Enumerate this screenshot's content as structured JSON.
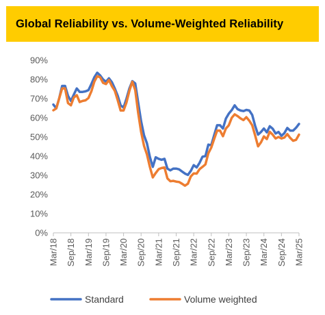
{
  "title": "Global Reliability vs. Volume-Weighted Reliability",
  "colors": {
    "title_bg": "#ffcc00",
    "standard": "#4472c4",
    "volume_weighted": "#ed7d31",
    "axis_text": "#595959"
  },
  "chart_data": {
    "type": "line",
    "title": "Global Reliability vs. Volume-Weighted Reliability",
    "ylim": [
      0,
      90
    ],
    "y_ticks": [
      0,
      10,
      20,
      30,
      40,
      50,
      60,
      70,
      80,
      90
    ],
    "y_tick_labels": [
      "0%",
      "10%",
      "20%",
      "30%",
      "40%",
      "50%",
      "60%",
      "70%",
      "80%",
      "90%"
    ],
    "x_tick_labels": [
      "Mar/18",
      "Sep/18",
      "Mar/19",
      "Sep/19",
      "Mar/20",
      "Sep/20",
      "Mar/21",
      "Sep/21",
      "Mar/22",
      "Sep/22",
      "Mar/23",
      "Sep/23",
      "Mar/24",
      "Sep/24",
      "Mar/25"
    ],
    "x": [
      "Mar/18",
      "Apr/18",
      "May/18",
      "Jun/18",
      "Jul/18",
      "Aug/18",
      "Sep/18",
      "Oct/18",
      "Nov/18",
      "Dec/18",
      "Jan/19",
      "Feb/19",
      "Mar/19",
      "Apr/19",
      "May/19",
      "Jun/19",
      "Jul/19",
      "Aug/19",
      "Sep/19",
      "Oct/19",
      "Nov/19",
      "Dec/19",
      "Jan/20",
      "Feb/20",
      "Mar/20",
      "Apr/20",
      "May/20",
      "Jun/20",
      "Jul/20",
      "Aug/20",
      "Sep/20",
      "Oct/20",
      "Nov/20",
      "Dec/20",
      "Jan/21",
      "Feb/21",
      "Mar/21",
      "Apr/21",
      "May/21",
      "Jun/21",
      "Jul/21",
      "Aug/21",
      "Sep/21",
      "Oct/21",
      "Nov/21",
      "Dec/21",
      "Jan/22",
      "Feb/22",
      "Mar/22",
      "Apr/22",
      "May/22",
      "Jun/22",
      "Jul/22",
      "Aug/22",
      "Sep/22",
      "Oct/22",
      "Nov/22",
      "Dec/22",
      "Jan/23",
      "Feb/23",
      "Mar/23",
      "Apr/23",
      "May/23",
      "Jun/23",
      "Jul/23",
      "Aug/23",
      "Sep/23",
      "Oct/23",
      "Nov/23",
      "Dec/23",
      "Jan/24",
      "Feb/24",
      "Mar/24",
      "Apr/24",
      "May/24",
      "Jun/24",
      "Jul/24",
      "Aug/24",
      "Sep/24",
      "Oct/24",
      "Nov/24",
      "Dec/24",
      "Jan/25",
      "Feb/25",
      "Mar/25"
    ],
    "series": [
      {
        "name": "Standard",
        "values": [
          66.9,
          64.9,
          70.2,
          76.6,
          76.6,
          71.5,
          68.8,
          72.1,
          75.3,
          73.5,
          73.5,
          73.8,
          74.4,
          77.6,
          81.1,
          83.5,
          82.1,
          80.0,
          78.8,
          80.6,
          78.6,
          75.3,
          71.5,
          66.5,
          65.3,
          70.0,
          75.3,
          79.1,
          77.9,
          68.0,
          58.2,
          50.9,
          46.7,
          39.6,
          34.4,
          39.4,
          38.6,
          38.1,
          38.6,
          33.5,
          32.6,
          33.5,
          33.5,
          33.1,
          32.0,
          30.9,
          30.2,
          32.3,
          35.3,
          34.1,
          36.5,
          39.7,
          40.0,
          46.0,
          45.7,
          51.0,
          56.1,
          56.1,
          54.4,
          59.6,
          62.2,
          64.0,
          66.5,
          64.5,
          63.8,
          63.5,
          64.1,
          63.8,
          61.5,
          55.8,
          51.2,
          52.6,
          54.4,
          52.4,
          55.6,
          54.3,
          51.8,
          52.6,
          50.6,
          52.0,
          54.7,
          53.3,
          53.3,
          54.8,
          56.8
        ]
      },
      {
        "name": "Volume weighted",
        "values": [
          63.9,
          64.9,
          70.2,
          75.3,
          75.3,
          67.7,
          66.5,
          70.6,
          71.8,
          68.2,
          68.8,
          69.1,
          70.3,
          73.8,
          78.8,
          81.7,
          81.1,
          78.2,
          77.6,
          79.7,
          76.5,
          74.1,
          69.2,
          63.8,
          63.8,
          68.0,
          74.1,
          78.8,
          74.4,
          62.6,
          52.7,
          45.4,
          40.9,
          34.4,
          28.9,
          31.2,
          33.2,
          33.8,
          34.1,
          28.4,
          26.9,
          27.1,
          26.7,
          26.5,
          25.6,
          24.6,
          25.6,
          29.4,
          31.0,
          30.9,
          33.2,
          34.4,
          35.7,
          41.5,
          44.5,
          49.0,
          53.3,
          53.3,
          50.4,
          54.4,
          56.1,
          60.0,
          61.8,
          60.9,
          59.7,
          58.8,
          60.3,
          58.5,
          56.1,
          50.8,
          45.1,
          47.2,
          50.3,
          48.9,
          52.7,
          51.2,
          49.2,
          50.0,
          49.2,
          49.7,
          51.5,
          49.5,
          48.0,
          48.5,
          51.2
        ]
      }
    ],
    "legend_position": "bottom",
    "grid": false
  }
}
